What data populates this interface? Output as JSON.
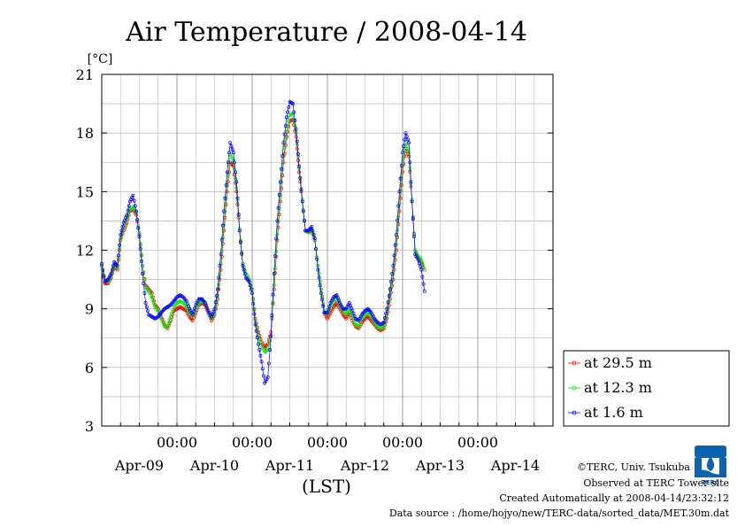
{
  "chart_data": {
    "type": "line",
    "title": "Air Temperature / 2008-04-14",
    "ylabel": "[°C]",
    "xlabel": "(LST)",
    "ylim": [
      3,
      21
    ],
    "yticks": [
      3,
      6,
      9,
      12,
      15,
      18,
      21
    ],
    "xlim": [
      0,
      144
    ],
    "xticks": [
      {
        "x": 24,
        "time": "00:00",
        "date": "Apr-09"
      },
      {
        "x": 48,
        "time": "00:00",
        "date": "Apr-10"
      },
      {
        "x": 72,
        "time": "00:00",
        "date": "Apr-11"
      },
      {
        "x": 96,
        "time": "00:00",
        "date": "Apr-12"
      },
      {
        "x": 120,
        "time": "00:00",
        "date": "Apr-13"
      },
      {
        "x": "",
        "time": "",
        "date": "Apr-14"
      }
    ],
    "grid": true,
    "legend_position": "right",
    "series": [
      {
        "name": "at 29.5 m",
        "color": "#ff0000",
        "points": [
          [
            0,
            11.2
          ],
          [
            1,
            10.3
          ],
          [
            2,
            10.3
          ],
          [
            3,
            10.6
          ],
          [
            4,
            11.2
          ],
          [
            5,
            11.0
          ],
          [
            6,
            12.5
          ],
          [
            7,
            13.0
          ],
          [
            8,
            13.4
          ],
          [
            9,
            14.0
          ],
          [
            10,
            14.1
          ],
          [
            11,
            13.8
          ],
          [
            12,
            12.8
          ],
          [
            13,
            11.2
          ],
          [
            14,
            10.2
          ],
          [
            15,
            10.0
          ],
          [
            16,
            9.8
          ],
          [
            17,
            9.2
          ],
          [
            18,
            9.0
          ],
          [
            19,
            8.6
          ],
          [
            20,
            8.2
          ],
          [
            21,
            8.0
          ],
          [
            22,
            8.4
          ],
          [
            23,
            8.9
          ],
          [
            24,
            9.0
          ],
          [
            25,
            9.1
          ],
          [
            26,
            9.0
          ],
          [
            27,
            8.9
          ],
          [
            28,
            8.6
          ],
          [
            29,
            8.4
          ],
          [
            30,
            8.8
          ],
          [
            31,
            9.2
          ],
          [
            32,
            9.3
          ],
          [
            33,
            9.2
          ],
          [
            34,
            8.8
          ],
          [
            35,
            8.4
          ],
          [
            36,
            8.7
          ],
          [
            37,
            9.5
          ],
          [
            38,
            11.0
          ],
          [
            39,
            13.0
          ],
          [
            40,
            15.0
          ],
          [
            41,
            16.5
          ],
          [
            42,
            16.3
          ],
          [
            43,
            15.0
          ],
          [
            44,
            13.0
          ],
          [
            45,
            11.3
          ],
          [
            46,
            10.8
          ],
          [
            47,
            10.5
          ],
          [
            48,
            10.0
          ],
          [
            49,
            8.5
          ],
          [
            50,
            7.8
          ],
          [
            51,
            7.3
          ],
          [
            52,
            7.0
          ],
          [
            53,
            7.2
          ],
          [
            54,
            7.8
          ],
          [
            55,
            10.0
          ],
          [
            56,
            12.5
          ],
          [
            57,
            14.5
          ],
          [
            58,
            16.5
          ],
          [
            59,
            17.8
          ],
          [
            60,
            18.6
          ],
          [
            61,
            18.7
          ],
          [
            62,
            17.8
          ],
          [
            63,
            16.0
          ],
          [
            64,
            14.5
          ],
          [
            65,
            13.0
          ],
          [
            66,
            12.9
          ],
          [
            67,
            13.0
          ],
          [
            68,
            12.5
          ],
          [
            69,
            11.2
          ],
          [
            70,
            10.0
          ],
          [
            71,
            8.8
          ],
          [
            72,
            8.5
          ],
          [
            73,
            8.8
          ],
          [
            74,
            9.1
          ],
          [
            75,
            9.3
          ],
          [
            76,
            9.0
          ],
          [
            77,
            8.7
          ],
          [
            78,
            8.5
          ],
          [
            79,
            8.8
          ],
          [
            80,
            8.4
          ],
          [
            81,
            8.1
          ],
          [
            82,
            8.0
          ],
          [
            83,
            8.3
          ],
          [
            84,
            8.5
          ],
          [
            85,
            8.6
          ],
          [
            86,
            8.4
          ],
          [
            87,
            8.2
          ],
          [
            88,
            8.0
          ],
          [
            89,
            7.9
          ],
          [
            90,
            8.0
          ],
          [
            91,
            8.5
          ],
          [
            92,
            9.5
          ],
          [
            93,
            10.5
          ],
          [
            94,
            12.0
          ],
          [
            95,
            14.0
          ],
          [
            96,
            16.0
          ],
          [
            97,
            17.2
          ],
          [
            98,
            16.8
          ],
          [
            99,
            14.5
          ],
          [
            100,
            12.0
          ],
          [
            101,
            11.6
          ],
          [
            102,
            11.4
          ],
          [
            103,
            11.0
          ]
        ]
      },
      {
        "name": "at 12.3 m",
        "color": "#00ee00",
        "points": [
          [
            0,
            11.2
          ],
          [
            1,
            10.4
          ],
          [
            2,
            10.4
          ],
          [
            3,
            10.7
          ],
          [
            4,
            11.3
          ],
          [
            5,
            11.1
          ],
          [
            6,
            12.6
          ],
          [
            7,
            13.2
          ],
          [
            8,
            13.6
          ],
          [
            9,
            14.1
          ],
          [
            10,
            14.2
          ],
          [
            11,
            13.9
          ],
          [
            12,
            12.9
          ],
          [
            13,
            11.2
          ],
          [
            14,
            10.1
          ],
          [
            15,
            9.9
          ],
          [
            16,
            9.6
          ],
          [
            17,
            9.1
          ],
          [
            18,
            8.9
          ],
          [
            19,
            8.5
          ],
          [
            20,
            8.1
          ],
          [
            21,
            8.1
          ],
          [
            22,
            8.6
          ],
          [
            23,
            9.1
          ],
          [
            24,
            9.3
          ],
          [
            25,
            9.4
          ],
          [
            26,
            9.3
          ],
          [
            27,
            9.1
          ],
          [
            28,
            8.8
          ],
          [
            29,
            8.6
          ],
          [
            30,
            9.0
          ],
          [
            31,
            9.3
          ],
          [
            32,
            9.4
          ],
          [
            33,
            9.3
          ],
          [
            34,
            8.9
          ],
          [
            35,
            8.5
          ],
          [
            36,
            8.8
          ],
          [
            37,
            9.7
          ],
          [
            38,
            11.3
          ],
          [
            39,
            13.3
          ],
          [
            40,
            15.3
          ],
          [
            41,
            16.9
          ],
          [
            42,
            16.6
          ],
          [
            43,
            15.2
          ],
          [
            44,
            13.1
          ],
          [
            45,
            11.3
          ],
          [
            46,
            10.8
          ],
          [
            47,
            10.5
          ],
          [
            48,
            10.0
          ],
          [
            49,
            8.4
          ],
          [
            50,
            7.6
          ],
          [
            51,
            7.1
          ],
          [
            52,
            6.8
          ],
          [
            53,
            6.9
          ],
          [
            54,
            7.6
          ],
          [
            55,
            10.2
          ],
          [
            56,
            12.8
          ],
          [
            57,
            14.8
          ],
          [
            58,
            16.8
          ],
          [
            59,
            18.1
          ],
          [
            60,
            18.9
          ],
          [
            61,
            19.0
          ],
          [
            62,
            18.0
          ],
          [
            63,
            16.2
          ],
          [
            64,
            14.6
          ],
          [
            65,
            13.0
          ],
          [
            66,
            12.9
          ],
          [
            67,
            13.1
          ],
          [
            68,
            12.5
          ],
          [
            69,
            11.2
          ],
          [
            70,
            10.0
          ],
          [
            71,
            8.9
          ],
          [
            72,
            8.7
          ],
          [
            73,
            9.1
          ],
          [
            74,
            9.4
          ],
          [
            75,
            9.6
          ],
          [
            76,
            9.2
          ],
          [
            77,
            8.9
          ],
          [
            78,
            8.7
          ],
          [
            79,
            9.0
          ],
          [
            80,
            8.6
          ],
          [
            81,
            8.2
          ],
          [
            82,
            8.1
          ],
          [
            83,
            8.5
          ],
          [
            84,
            8.7
          ],
          [
            85,
            8.8
          ],
          [
            86,
            8.6
          ],
          [
            87,
            8.3
          ],
          [
            88,
            8.1
          ],
          [
            89,
            8.0
          ],
          [
            90,
            8.1
          ],
          [
            91,
            8.7
          ],
          [
            92,
            9.7
          ],
          [
            93,
            10.8
          ],
          [
            94,
            12.3
          ],
          [
            95,
            14.4
          ],
          [
            96,
            16.4
          ],
          [
            97,
            17.5
          ],
          [
            98,
            17.0
          ],
          [
            99,
            14.6
          ],
          [
            100,
            12.0
          ],
          [
            101,
            11.7
          ],
          [
            102,
            11.5
          ],
          [
            103,
            11.0
          ]
        ]
      },
      {
        "name": "at 1.6 m",
        "color": "#0000ff",
        "points": [
          [
            0,
            11.3
          ],
          [
            1,
            10.4
          ],
          [
            2,
            10.5
          ],
          [
            3,
            10.8
          ],
          [
            4,
            11.4
          ],
          [
            5,
            11.2
          ],
          [
            6,
            12.8
          ],
          [
            7,
            13.4
          ],
          [
            8,
            13.8
          ],
          [
            9,
            14.5
          ],
          [
            10,
            14.8
          ],
          [
            11,
            14.0
          ],
          [
            12,
            12.7
          ],
          [
            13,
            10.8
          ],
          [
            14,
            9.3
          ],
          [
            15,
            8.7
          ],
          [
            16,
            8.6
          ],
          [
            17,
            8.5
          ],
          [
            18,
            8.6
          ],
          [
            19,
            8.8
          ],
          [
            20,
            9.0
          ],
          [
            21,
            9.1
          ],
          [
            22,
            9.2
          ],
          [
            23,
            9.4
          ],
          [
            24,
            9.6
          ],
          [
            25,
            9.7
          ],
          [
            26,
            9.6
          ],
          [
            27,
            9.4
          ],
          [
            28,
            9.0
          ],
          [
            29,
            8.7
          ],
          [
            30,
            9.2
          ],
          [
            31,
            9.5
          ],
          [
            32,
            9.5
          ],
          [
            33,
            9.3
          ],
          [
            34,
            8.9
          ],
          [
            35,
            8.6
          ],
          [
            36,
            9.0
          ],
          [
            37,
            10.0
          ],
          [
            38,
            11.8
          ],
          [
            39,
            14.0
          ],
          [
            40,
            16.0
          ],
          [
            41,
            17.5
          ],
          [
            42,
            17.0
          ],
          [
            43,
            15.5
          ],
          [
            44,
            13.0
          ],
          [
            45,
            11.2
          ],
          [
            46,
            10.6
          ],
          [
            47,
            10.4
          ],
          [
            48,
            9.8
          ],
          [
            49,
            8.2
          ],
          [
            50,
            7.2
          ],
          [
            51,
            6.3
          ],
          [
            52,
            5.2
          ],
          [
            53,
            5.5
          ],
          [
            54,
            7.6
          ],
          [
            55,
            10.8
          ],
          [
            56,
            13.5
          ],
          [
            57,
            15.5
          ],
          [
            58,
            17.5
          ],
          [
            59,
            18.8
          ],
          [
            60,
            19.6
          ],
          [
            61,
            19.5
          ],
          [
            62,
            18.2
          ],
          [
            63,
            16.3
          ],
          [
            64,
            14.5
          ],
          [
            65,
            13.0
          ],
          [
            66,
            13.0
          ],
          [
            67,
            13.2
          ],
          [
            68,
            12.6
          ],
          [
            69,
            11.0
          ],
          [
            70,
            9.8
          ],
          [
            71,
            8.8
          ],
          [
            72,
            8.8
          ],
          [
            73,
            9.3
          ],
          [
            74,
            9.6
          ],
          [
            75,
            9.7
          ],
          [
            76,
            9.3
          ],
          [
            77,
            9.0
          ],
          [
            78,
            9.0
          ],
          [
            79,
            9.3
          ],
          [
            80,
            8.9
          ],
          [
            81,
            8.5
          ],
          [
            82,
            8.4
          ],
          [
            83,
            8.7
          ],
          [
            84,
            8.9
          ],
          [
            85,
            9.0
          ],
          [
            86,
            8.8
          ],
          [
            87,
            8.5
          ],
          [
            88,
            8.3
          ],
          [
            89,
            8.2
          ],
          [
            90,
            8.3
          ],
          [
            91,
            9.0
          ],
          [
            92,
            10.0
          ],
          [
            93,
            11.2
          ],
          [
            94,
            12.8
          ],
          [
            95,
            15.0
          ],
          [
            96,
            17.0
          ],
          [
            97,
            18.0
          ],
          [
            98,
            17.5
          ],
          [
            99,
            14.5
          ],
          [
            100,
            11.8
          ],
          [
            101,
            11.5
          ],
          [
            102,
            11.0
          ],
          [
            103,
            9.9
          ]
        ]
      }
    ]
  },
  "footer": {
    "copyright": "©TERC, Univ. Tsukuba",
    "observed": "Observed at TERC Tower site",
    "created": "Created Automatically at 2008-04-14/23:32:12",
    "source": "Data source : /home/hojyo/new/TERC-data/sorted_data/MET.30m.dat"
  },
  "logo": {
    "text": "TERC"
  }
}
